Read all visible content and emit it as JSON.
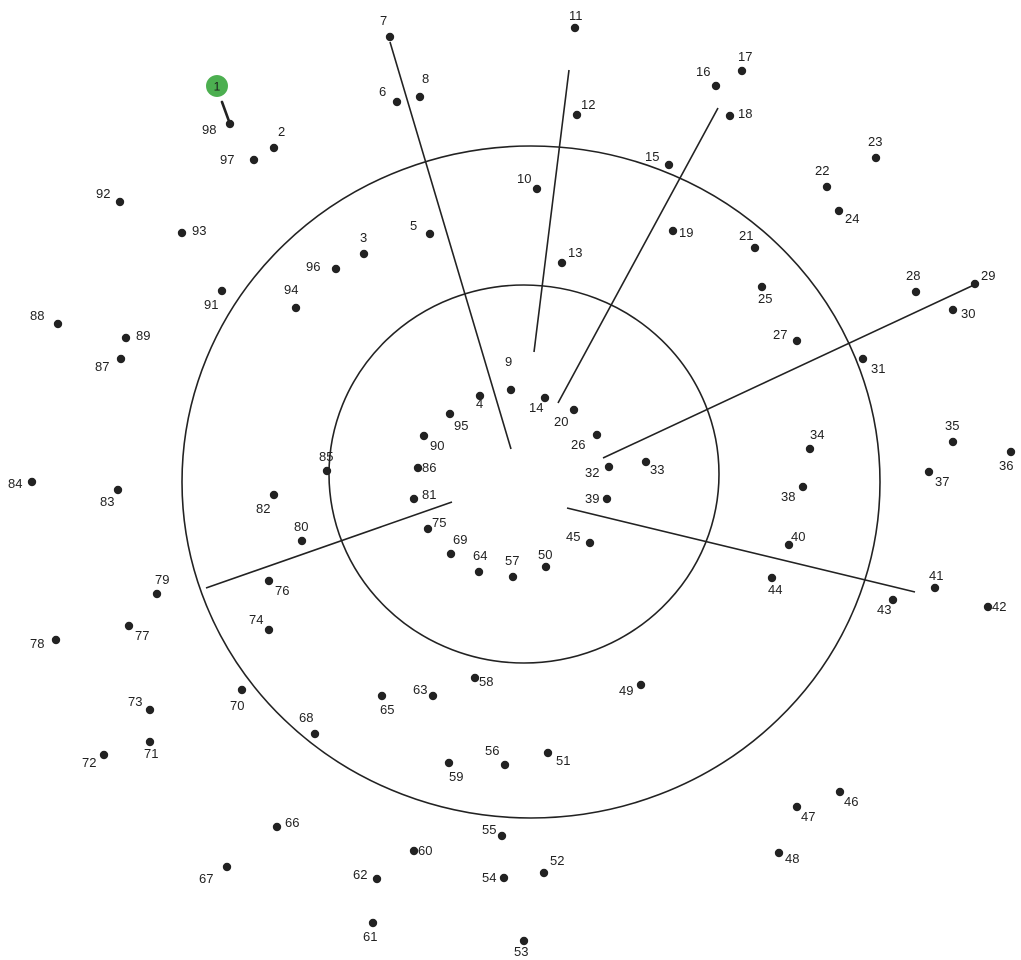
{
  "puzzle": {
    "start_dot": "1",
    "dot_labels": [
      "2",
      "3",
      "4",
      "5",
      "6",
      "7",
      "8",
      "9",
      "10",
      "11",
      "12",
      "13",
      "14",
      "15",
      "16",
      "17",
      "18",
      "19",
      "20",
      "21",
      "22",
      "23",
      "24",
      "25",
      "26",
      "27",
      "28",
      "29",
      "30",
      "31",
      "32",
      "33",
      "34",
      "35",
      "36",
      "37",
      "38",
      "39",
      "40",
      "41",
      "42",
      "43",
      "44",
      "45",
      "46",
      "47",
      "48",
      "49",
      "50",
      "51",
      "52",
      "53",
      "54",
      "55",
      "56",
      "57",
      "58",
      "59",
      "60",
      "61",
      "62",
      "63",
      "64",
      "65",
      "66",
      "67",
      "68",
      "69",
      "70",
      "71",
      "72",
      "73",
      "74",
      "75",
      "76",
      "77",
      "78",
      "79",
      "80",
      "81",
      "82",
      "83",
      "84",
      "85",
      "86",
      "87",
      "88",
      "89",
      "90",
      "91",
      "92",
      "93",
      "94",
      "95",
      "96",
      "97",
      "98"
    ],
    "colors": {
      "start": "#4caf50",
      "dot": "#222222",
      "line": "#222222"
    }
  }
}
